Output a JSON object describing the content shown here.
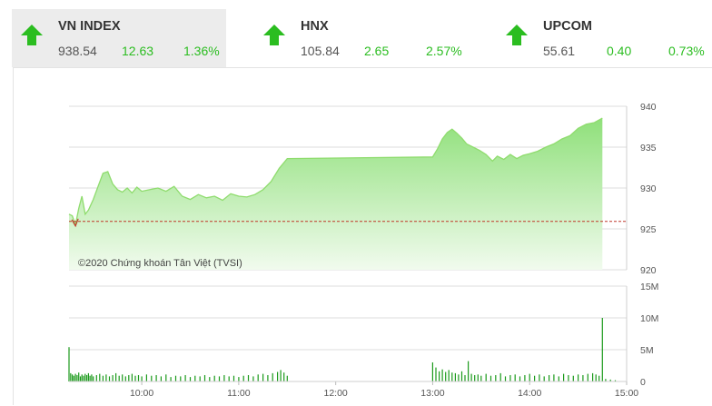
{
  "indices": [
    {
      "name": "VN INDEX",
      "price": "938.54",
      "change": "12.63",
      "percent": "1.36%",
      "direction": "up",
      "active": true
    },
    {
      "name": "HNX",
      "price": "105.84",
      "change": "2.65",
      "percent": "2.57%",
      "direction": "up",
      "active": false
    },
    {
      "name": "UPCOM",
      "price": "55.61",
      "change": "0.40",
      "percent": "0.73%",
      "direction": "up",
      "active": false
    }
  ],
  "colors": {
    "up": "#2bbd20",
    "line": "#8fdc6e",
    "area_top": "#8fe07a",
    "area_bottom": "#f1fbee",
    "reference": "#c0392b",
    "volume": "#1a9a1a"
  },
  "chart_data": [
    {
      "type": "area",
      "series": [
        {
          "values": [
            [
              "9:15",
              926.8
            ],
            [
              "9:17",
              926.6
            ],
            [
              "9:19",
              925.5
            ],
            [
              "9:21",
              927.5
            ],
            [
              "9:23",
              929.0
            ],
            [
              "9:25",
              926.8
            ],
            [
              "9:27",
              927.3
            ],
            [
              "9:30",
              928.6
            ],
            [
              "9:33",
              930.2
            ],
            [
              "9:36",
              931.8
            ],
            [
              "9:39",
              932.0
            ],
            [
              "9:42",
              930.5
            ],
            [
              "9:45",
              929.8
            ],
            [
              "9:48",
              929.5
            ],
            [
              "9:51",
              930.0
            ],
            [
              "9:54",
              929.4
            ],
            [
              "9:57",
              930.1
            ],
            [
              "10:00",
              929.6
            ],
            [
              "10:05",
              929.8
            ],
            [
              "10:10",
              930.0
            ],
            [
              "10:15",
              929.6
            ],
            [
              "10:20",
              930.2
            ],
            [
              "10:25",
              929.0
            ],
            [
              "10:30",
              928.6
            ],
            [
              "10:35",
              929.2
            ],
            [
              "10:40",
              928.8
            ],
            [
              "10:45",
              929.0
            ],
            [
              "10:50",
              928.5
            ],
            [
              "10:55",
              929.3
            ],
            [
              "11:00",
              929.0
            ],
            [
              "11:05",
              928.9
            ],
            [
              "11:10",
              929.2
            ],
            [
              "11:15",
              929.8
            ],
            [
              "11:20",
              930.8
            ],
            [
              "11:25",
              932.4
            ],
            [
              "11:30",
              933.6
            ],
            [
              "13:00",
              933.8
            ],
            [
              "13:03",
              934.8
            ],
            [
              "13:06",
              936.0
            ],
            [
              "13:09",
              936.8
            ],
            [
              "13:12",
              937.2
            ],
            [
              "13:15",
              936.7
            ],
            [
              "13:18",
              936.1
            ],
            [
              "13:21",
              935.4
            ],
            [
              "13:25",
              935.0
            ],
            [
              "13:29",
              934.6
            ],
            [
              "13:33",
              934.1
            ],
            [
              "13:37",
              933.3
            ],
            [
              "13:40",
              933.9
            ],
            [
              "13:44",
              933.5
            ],
            [
              "13:48",
              934.1
            ],
            [
              "13:52",
              933.6
            ],
            [
              "13:56",
              934.0
            ],
            [
              "14:00",
              934.2
            ],
            [
              "14:05",
              934.5
            ],
            [
              "14:10",
              935.0
            ],
            [
              "14:15",
              935.4
            ],
            [
              "14:20",
              936.0
            ],
            [
              "14:25",
              936.4
            ],
            [
              "14:30",
              937.3
            ],
            [
              "14:35",
              937.8
            ],
            [
              "14:40",
              938.0
            ],
            [
              "14:45",
              938.54
            ]
          ]
        }
      ],
      "reference": 925.91,
      "ylim": [
        920,
        940
      ],
      "yticks": [
        "920",
        "925",
        "930",
        "935",
        "940"
      ],
      "annotation": "©2020 Chứng khoán Tân Việt (TVSI)",
      "grid": true
    },
    {
      "type": "bar",
      "ylim": [
        0,
        15
      ],
      "yticks": [
        "0",
        "5M",
        "10M",
        "15M"
      ],
      "xticks": [
        "10:00",
        "11:00",
        "12:00",
        "13:00",
        "14:00",
        "15:00"
      ],
      "unit": "M",
      "values": [
        [
          "9:15",
          5.4
        ],
        [
          "9:16",
          1.3
        ],
        [
          "9:17",
          1.1
        ],
        [
          "9:18",
          0.9
        ],
        [
          "9:19",
          1.2
        ],
        [
          "9:20",
          1.0
        ],
        [
          "9:21",
          1.4
        ],
        [
          "9:22",
          0.8
        ],
        [
          "9:23",
          1.1
        ],
        [
          "9:24",
          0.9
        ],
        [
          "9:25",
          1.2
        ],
        [
          "9:26",
          1.0
        ],
        [
          "9:27",
          1.3
        ],
        [
          "9:28",
          0.9
        ],
        [
          "9:29",
          1.1
        ],
        [
          "9:30",
          0.8
        ],
        [
          "9:32",
          1.0
        ],
        [
          "9:34",
          1.2
        ],
        [
          "9:36",
          0.9
        ],
        [
          "9:38",
          1.1
        ],
        [
          "9:40",
          0.8
        ],
        [
          "9:42",
          1.0
        ],
        [
          "9:44",
          1.3
        ],
        [
          "9:46",
          0.9
        ],
        [
          "9:48",
          1.1
        ],
        [
          "9:50",
          0.8
        ],
        [
          "9:52",
          1.0
        ],
        [
          "9:54",
          1.2
        ],
        [
          "9:56",
          0.9
        ],
        [
          "9:58",
          1.0
        ],
        [
          "10:00",
          0.8
        ],
        [
          "10:03",
          1.1
        ],
        [
          "10:06",
          0.9
        ],
        [
          "10:09",
          1.0
        ],
        [
          "10:12",
          0.8
        ],
        [
          "10:15",
          1.1
        ],
        [
          "10:18",
          0.7
        ],
        [
          "10:21",
          0.9
        ],
        [
          "10:24",
          0.8
        ],
        [
          "10:27",
          1.0
        ],
        [
          "10:30",
          0.7
        ],
        [
          "10:33",
          0.9
        ],
        [
          "10:36",
          0.8
        ],
        [
          "10:39",
          1.0
        ],
        [
          "10:42",
          0.7
        ],
        [
          "10:45",
          0.9
        ],
        [
          "10:48",
          0.8
        ],
        [
          "10:51",
          1.0
        ],
        [
          "10:54",
          0.8
        ],
        [
          "10:57",
          0.9
        ],
        [
          "11:00",
          0.7
        ],
        [
          "11:03",
          0.9
        ],
        [
          "11:06",
          1.0
        ],
        [
          "11:09",
          0.8
        ],
        [
          "11:12",
          1.1
        ],
        [
          "11:15",
          1.2
        ],
        [
          "11:18",
          1.0
        ],
        [
          "11:21",
          1.3
        ],
        [
          "11:24",
          1.5
        ],
        [
          "11:26",
          1.8
        ],
        [
          "11:28",
          1.4
        ],
        [
          "11:30",
          0.9
        ],
        [
          "13:00",
          3.0
        ],
        [
          "13:02",
          2.2
        ],
        [
          "13:04",
          1.6
        ],
        [
          "13:06",
          1.9
        ],
        [
          "13:08",
          1.5
        ],
        [
          "13:10",
          1.8
        ],
        [
          "13:12",
          1.4
        ],
        [
          "13:14",
          1.3
        ],
        [
          "13:16",
          1.1
        ],
        [
          "13:18",
          1.6
        ],
        [
          "13:20",
          1.0
        ],
        [
          "13:22",
          3.2
        ],
        [
          "13:24",
          1.2
        ],
        [
          "13:26",
          1.0
        ],
        [
          "13:28",
          1.1
        ],
        [
          "13:30",
          0.9
        ],
        [
          "13:33",
          1.2
        ],
        [
          "13:36",
          0.9
        ],
        [
          "13:39",
          1.0
        ],
        [
          "13:42",
          1.3
        ],
        [
          "13:45",
          0.8
        ],
        [
          "13:48",
          1.0
        ],
        [
          "13:51",
          1.1
        ],
        [
          "13:54",
          0.8
        ],
        [
          "13:57",
          1.0
        ],
        [
          "14:00",
          1.2
        ],
        [
          "14:03",
          0.9
        ],
        [
          "14:06",
          1.1
        ],
        [
          "14:09",
          0.8
        ],
        [
          "14:12",
          1.0
        ],
        [
          "14:15",
          1.1
        ],
        [
          "14:18",
          0.8
        ],
        [
          "14:21",
          1.2
        ],
        [
          "14:24",
          1.0
        ],
        [
          "14:27",
          0.9
        ],
        [
          "14:30",
          1.1
        ],
        [
          "14:33",
          1.0
        ],
        [
          "14:36",
          1.2
        ],
        [
          "14:39",
          1.3
        ],
        [
          "14:41",
          1.1
        ],
        [
          "14:43",
          0.9
        ],
        [
          "14:45",
          10.0
        ],
        [
          "14:47",
          0.4
        ],
        [
          "14:50",
          0.3
        ],
        [
          "14:53",
          0.2
        ]
      ]
    }
  ]
}
